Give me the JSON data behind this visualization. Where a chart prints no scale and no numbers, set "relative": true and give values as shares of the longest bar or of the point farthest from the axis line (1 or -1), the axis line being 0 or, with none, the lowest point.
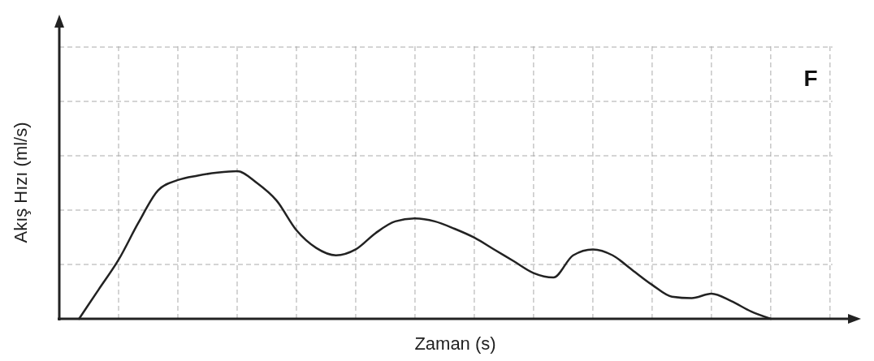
{
  "chart_data": {
    "type": "line",
    "relative": true,
    "xlabel": "Zaman (s)",
    "ylabel": "Akış Hızı (ml/s)",
    "annotations": [
      "F"
    ],
    "grid": true,
    "line_style": "solid",
    "color": "#222222",
    "categories": [
      null,
      null,
      null,
      null,
      null,
      null,
      null,
      null,
      null,
      null,
      null,
      null,
      null,
      null,
      null,
      null,
      null,
      null,
      null,
      null,
      null,
      null,
      null,
      null,
      null,
      null,
      null,
      null,
      null,
      null,
      null,
      null,
      null,
      null,
      null,
      null,
      null,
      null,
      null,
      null
    ],
    "values": [
      null,
      0,
      0.2,
      0.4,
      0.65,
      0.87,
      0.94,
      0.97,
      0.99,
      1,
      0.92,
      0.8,
      0.6,
      0.48,
      0.43,
      0.47,
      0.58,
      0.66,
      0.68,
      0.66,
      0.61,
      0.55,
      0.47,
      0.39,
      0.31,
      0.28,
      0.43,
      0.47,
      0.43,
      0.33,
      0.23,
      0.15,
      0.14,
      0.17,
      0.12,
      0.05,
      0,
      null,
      null,
      null
    ]
  }
}
